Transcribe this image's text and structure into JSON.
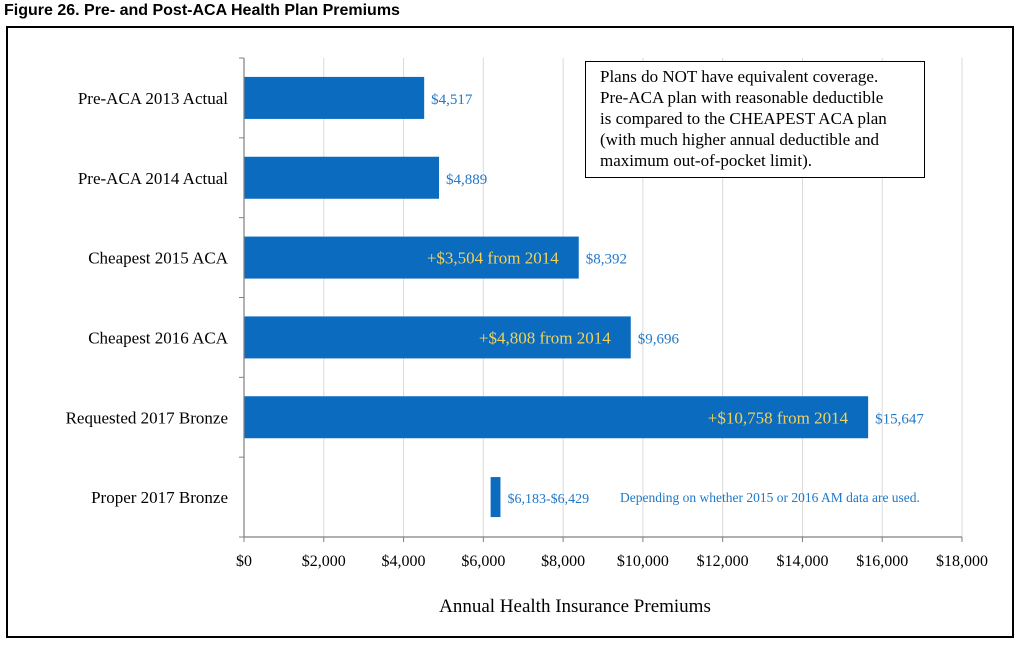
{
  "figure_title": "Figure 26.  Pre- and Post-ACA Health Plan Premiums",
  "colors": {
    "bar": "#0A6BBF",
    "value_label": "#1F78C8",
    "increase_label": "#F2D15A",
    "axis": "#808080",
    "grid": "#D9D9D9"
  },
  "note": {
    "lines": [
      "Plans do NOT have equivalent coverage.",
      "Pre-ACA plan with reasonable deductible",
      "is compared to the CHEAPEST ACA plan",
      "(with much higher annual deductible and",
      "maximum out-of-pocket limit)."
    ]
  },
  "chart_data": {
    "type": "bar",
    "orientation": "horizontal",
    "title": "",
    "xlabel": "Annual Health Insurance Premiums",
    "ylabel": "",
    "xlim": [
      0,
      18000
    ],
    "x_ticks": [
      "$0",
      "$2,000",
      "$4,000",
      "$6,000",
      "$8,000",
      "$10,000",
      "$12,000",
      "$14,000",
      "$16,000",
      "$18,000"
    ],
    "grid": "vertical",
    "bars": [
      {
        "category": "Pre-ACA 2013 Actual",
        "start": 0,
        "value": 4517,
        "value_label": "$4,517",
        "increase_label": ""
      },
      {
        "category": "Pre-ACA 2014 Actual",
        "start": 0,
        "value": 4889,
        "value_label": "$4,889",
        "increase_label": ""
      },
      {
        "category": "Cheapest 2015 ACA",
        "start": 0,
        "value": 8392,
        "value_label": "$8,392",
        "increase_label": "+$3,504 from 2014"
      },
      {
        "category": "Cheapest 2016 ACA",
        "start": 0,
        "value": 9696,
        "value_label": "$9,696",
        "increase_label": "+$4,808 from 2014"
      },
      {
        "category": "Requested 2017 Bronze",
        "start": 0,
        "value": 15647,
        "value_label": "$15,647",
        "increase_label": "+$10,758 from 2014"
      },
      {
        "category": "Proper 2017 Bronze",
        "start": 6183,
        "value": 6429,
        "value_label": "$6,183-$6,429",
        "increase_label": "",
        "annotation": "Depending on whether 2015 or 2016 AM data are used."
      }
    ]
  }
}
